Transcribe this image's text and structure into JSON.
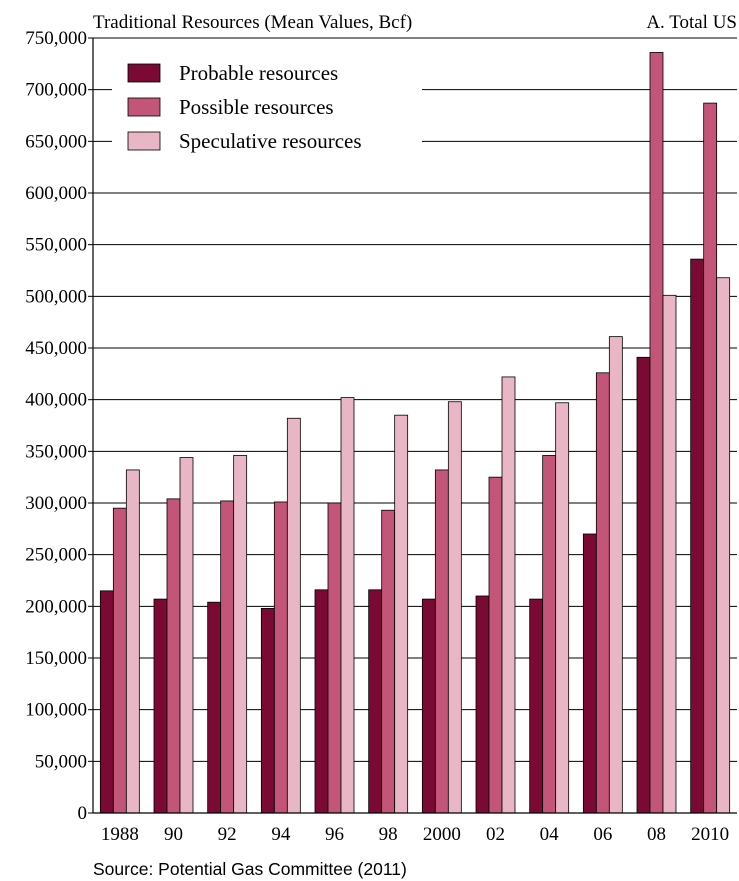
{
  "chart_data": {
    "type": "bar",
    "title": "Traditional Resources (Mean Values, Bcf)",
    "panel_label": "A. Total US",
    "source": "Source: Potential Gas Committee (2011)",
    "xlabel": "",
    "ylabel": "",
    "ylim": [
      0,
      750000
    ],
    "ytick_values": [
      0,
      50000,
      100000,
      150000,
      200000,
      250000,
      300000,
      350000,
      400000,
      450000,
      500000,
      550000,
      600000,
      650000,
      700000,
      750000
    ],
    "ytick_labels": [
      "0",
      "50,000",
      "100,000",
      "150,000",
      "200,000",
      "250,000",
      "300,000",
      "350,000",
      "400,000",
      "450,000",
      "500,000",
      "550,000",
      "600,000",
      "650,000",
      "700,000",
      "750,000"
    ],
    "categories": [
      "1988",
      "90",
      "92",
      "94",
      "96",
      "98",
      "2000",
      "02",
      "04",
      "06",
      "08",
      "2010"
    ],
    "grid": true,
    "legend_position": "top-left",
    "series": [
      {
        "name": "Probable resources",
        "color": "#7a0a33",
        "values": [
          215000,
          207000,
          204000,
          198000,
          216000,
          216000,
          207000,
          210000,
          207000,
          270000,
          441000,
          536000
        ]
      },
      {
        "name": "Possible resources",
        "color": "#c25578",
        "values": [
          295000,
          304000,
          302000,
          301000,
          300000,
          293000,
          332000,
          325000,
          346000,
          426000,
          736000,
          687000
        ]
      },
      {
        "name": "Speculative resources",
        "color": "#e9b6c6",
        "values": [
          332000,
          344000,
          346000,
          382000,
          402000,
          385000,
          398000,
          422000,
          397000,
          461000,
          501000,
          518000
        ]
      }
    ]
  }
}
